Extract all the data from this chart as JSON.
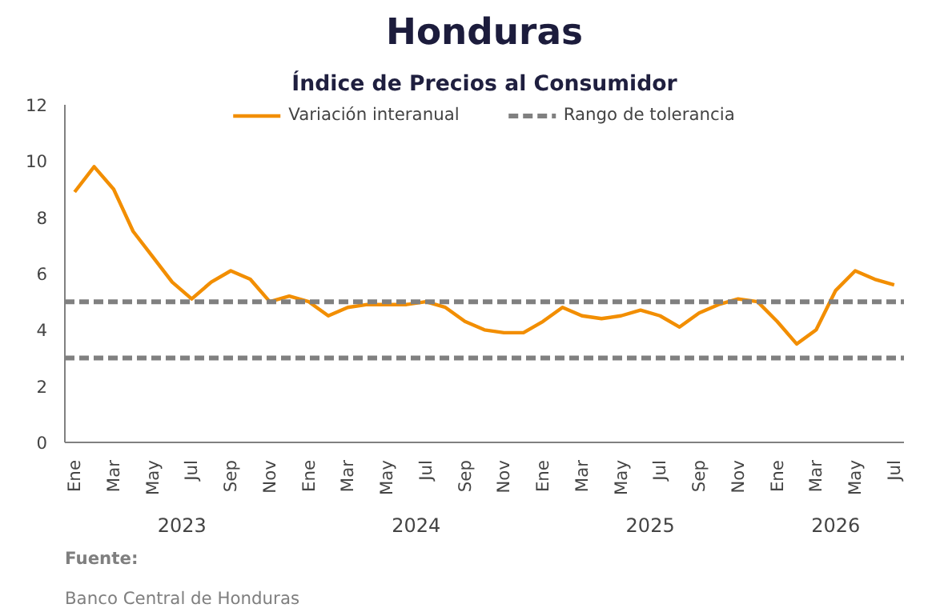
{
  "chart_data": {
    "type": "line",
    "title": "Honduras",
    "subtitle": "Índice de Precios al Consumidor",
    "categories": [
      "Ene",
      null,
      "Mar",
      null,
      "May",
      null,
      "Jul",
      null,
      "Sep",
      null,
      "Nov",
      null,
      "Ene",
      null,
      "Mar",
      null,
      "May",
      null,
      "Jul",
      null,
      "Sep",
      null,
      "Nov",
      null,
      "Ene",
      null,
      "Mar",
      null,
      "May",
      null,
      "Jul",
      null,
      "Sep",
      null,
      "Nov",
      null,
      "Ene",
      null,
      "Mar",
      null,
      "May",
      null,
      "Jul"
    ],
    "series": [
      {
        "name": "Variación interanual",
        "color": "#f28e00",
        "values": [
          8.9,
          9.8,
          9.0,
          7.5,
          6.6,
          5.7,
          5.1,
          5.7,
          6.1,
          5.8,
          5.0,
          5.2,
          5.0,
          4.5,
          4.8,
          4.9,
          4.9,
          4.9,
          5.0,
          4.8,
          4.3,
          4.0,
          3.9,
          3.9,
          4.3,
          4.8,
          4.5,
          4.4,
          4.5,
          4.7,
          4.5,
          4.1,
          4.6,
          4.9,
          5.1,
          5.0,
          4.3,
          3.5,
          4.0,
          5.4,
          6.1,
          5.8,
          5.6
        ]
      }
    ],
    "ref_lines": [
      {
        "axis": "y",
        "value": 5,
        "label": "Rango de tolerancia",
        "color": "#808080",
        "line_style": "dashed"
      },
      {
        "axis": "y",
        "value": 3,
        "color": "#808080",
        "line_style": "dashed"
      }
    ],
    "ylim": [
      0,
      12
    ],
    "yticks": [
      0,
      2,
      4,
      6,
      8,
      10,
      12
    ],
    "annotations": [
      "2023",
      "2024",
      "2025",
      "2026",
      "Fuente:",
      "Banco Central de Honduras"
    ],
    "grid": false,
    "legend": "top",
    "marker": "none",
    "line_style": "solid"
  }
}
